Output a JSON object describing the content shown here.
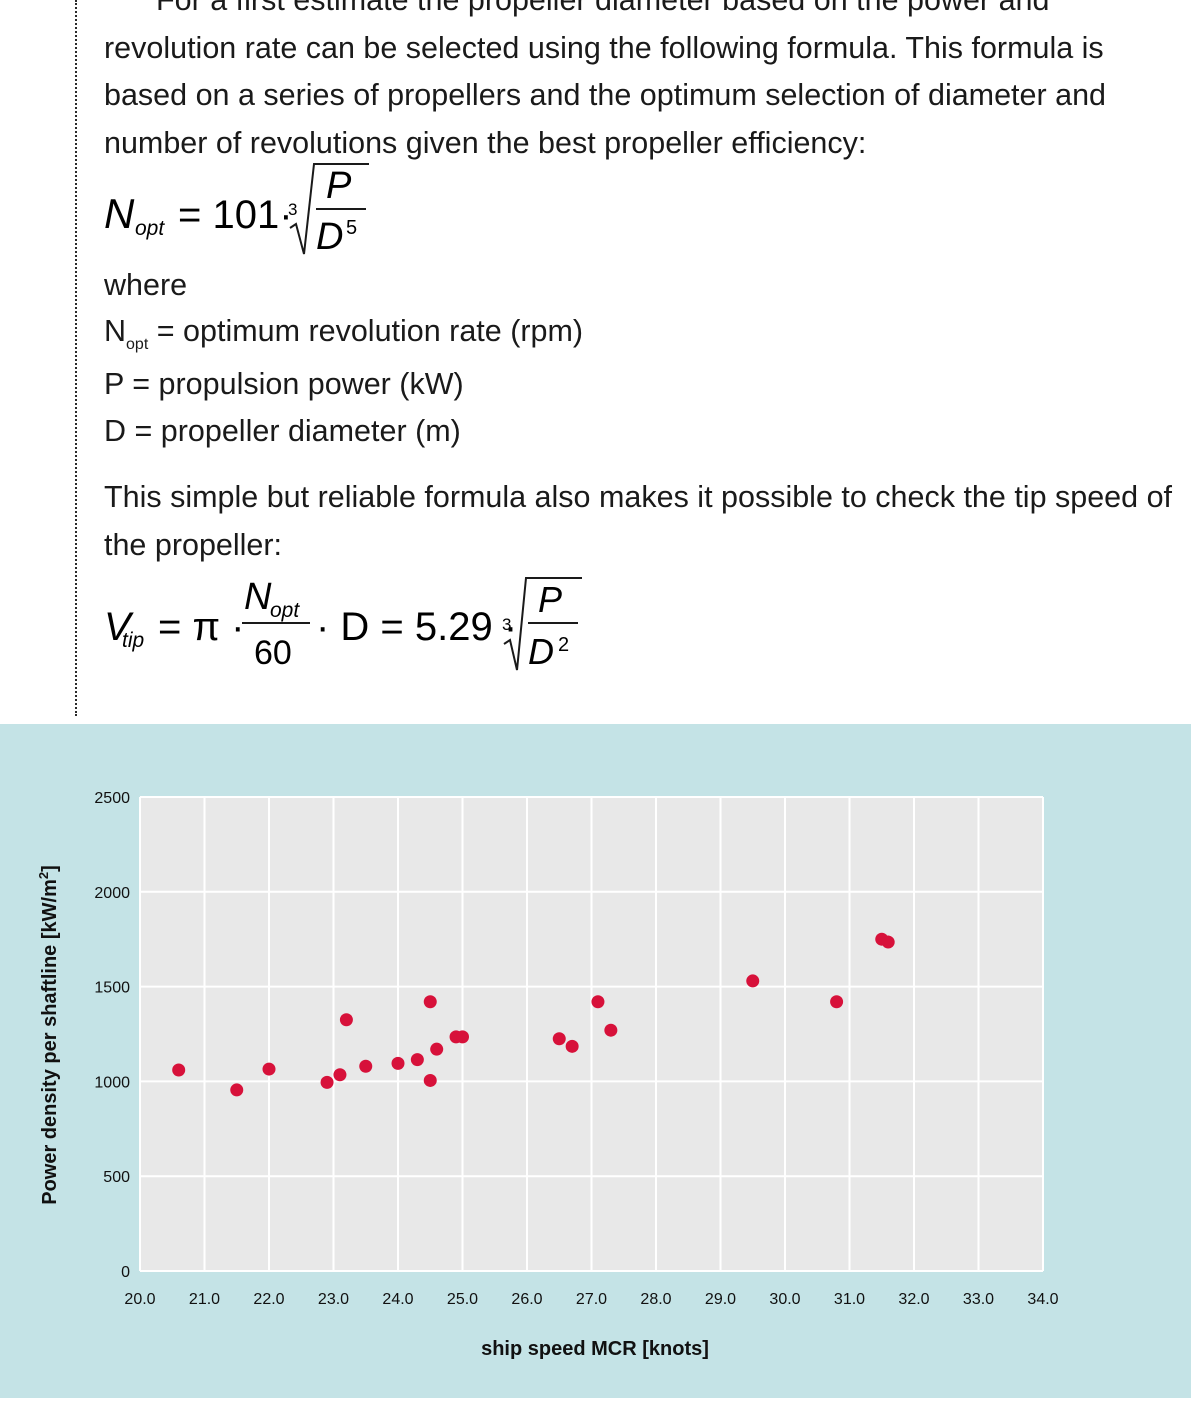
{
  "text": {
    "para1_first_line": "For a first estimate the propeller diameter based on the power and",
    "para1_rest": "revolution rate can be selected using the following formula. This formula is based on a series of propellers and the optimum selection of diameter and number of revolutions given the best propeller efficiency:",
    "formula1": {
      "lhs": "N",
      "lhs_sub": "opt",
      "eq": "= 101·",
      "root_index": "3",
      "num": "P",
      "den": "D",
      "den_exp": "5"
    },
    "where": "where",
    "definitions": [
      {
        "sym": "N",
        "sub": "opt",
        "text": " = optimum revolution rate (rpm)"
      },
      {
        "sym": "P",
        "sub": "",
        "text": " = propulsion power (kW)"
      },
      {
        "sym": "D",
        "sub": "",
        "text": " = propeller diameter (m)"
      }
    ],
    "para2": "This simple but reliable formula also makes it possible to check the tip speed of the propeller:",
    "formula2": {
      "lhs": "V",
      "lhs_sub": "tip",
      "eq1": "= π ·",
      "frac_num": "N",
      "frac_num_sub": "opt",
      "frac_den": "60",
      "mid": "· D = 5.29 ·",
      "root_index": "3",
      "num": "P",
      "den": "D",
      "den_exp": "2"
    }
  },
  "colors": {
    "panel": "#c4e3e6",
    "plot_bg": "#e8e8e8",
    "grid": "#ffffff",
    "point": "#d7113a"
  },
  "chart_data": {
    "type": "scatter",
    "title": "",
    "xlabel": "ship speed MCR [knots]",
    "ylabel": "Power density per shaftline [kW/m²]",
    "ylabel_base": "Power density per shaftline [kW/m",
    "ylabel_sup": "2",
    "ylabel_end": "]",
    "xlim": [
      20,
      34
    ],
    "ylim": [
      0,
      2500
    ],
    "xticks": [
      "20.0",
      "21.0",
      "22.0",
      "23.0",
      "24.0",
      "25.0",
      "26.0",
      "27.0",
      "28.0",
      "29.0",
      "30.0",
      "31.0",
      "32.0",
      "33.0",
      "34.0"
    ],
    "yticks": [
      "0",
      "500",
      "1000",
      "1500",
      "2000",
      "2500"
    ],
    "grid": true,
    "points": [
      {
        "x": 20.6,
        "y": 1060
      },
      {
        "x": 21.5,
        "y": 955
      },
      {
        "x": 22.0,
        "y": 1065
      },
      {
        "x": 22.9,
        "y": 995
      },
      {
        "x": 23.1,
        "y": 1035
      },
      {
        "x": 23.2,
        "y": 1325
      },
      {
        "x": 23.5,
        "y": 1080
      },
      {
        "x": 24.0,
        "y": 1095
      },
      {
        "x": 24.3,
        "y": 1115
      },
      {
        "x": 24.5,
        "y": 1420
      },
      {
        "x": 24.5,
        "y": 1005
      },
      {
        "x": 24.6,
        "y": 1170
      },
      {
        "x": 24.9,
        "y": 1235
      },
      {
        "x": 25.0,
        "y": 1235
      },
      {
        "x": 26.5,
        "y": 1225
      },
      {
        "x": 26.7,
        "y": 1185
      },
      {
        "x": 27.1,
        "y": 1420
      },
      {
        "x": 27.3,
        "y": 1270
      },
      {
        "x": 29.5,
        "y": 1530
      },
      {
        "x": 30.8,
        "y": 1420
      },
      {
        "x": 31.5,
        "y": 1750
      },
      {
        "x": 31.6,
        "y": 1735
      }
    ]
  }
}
